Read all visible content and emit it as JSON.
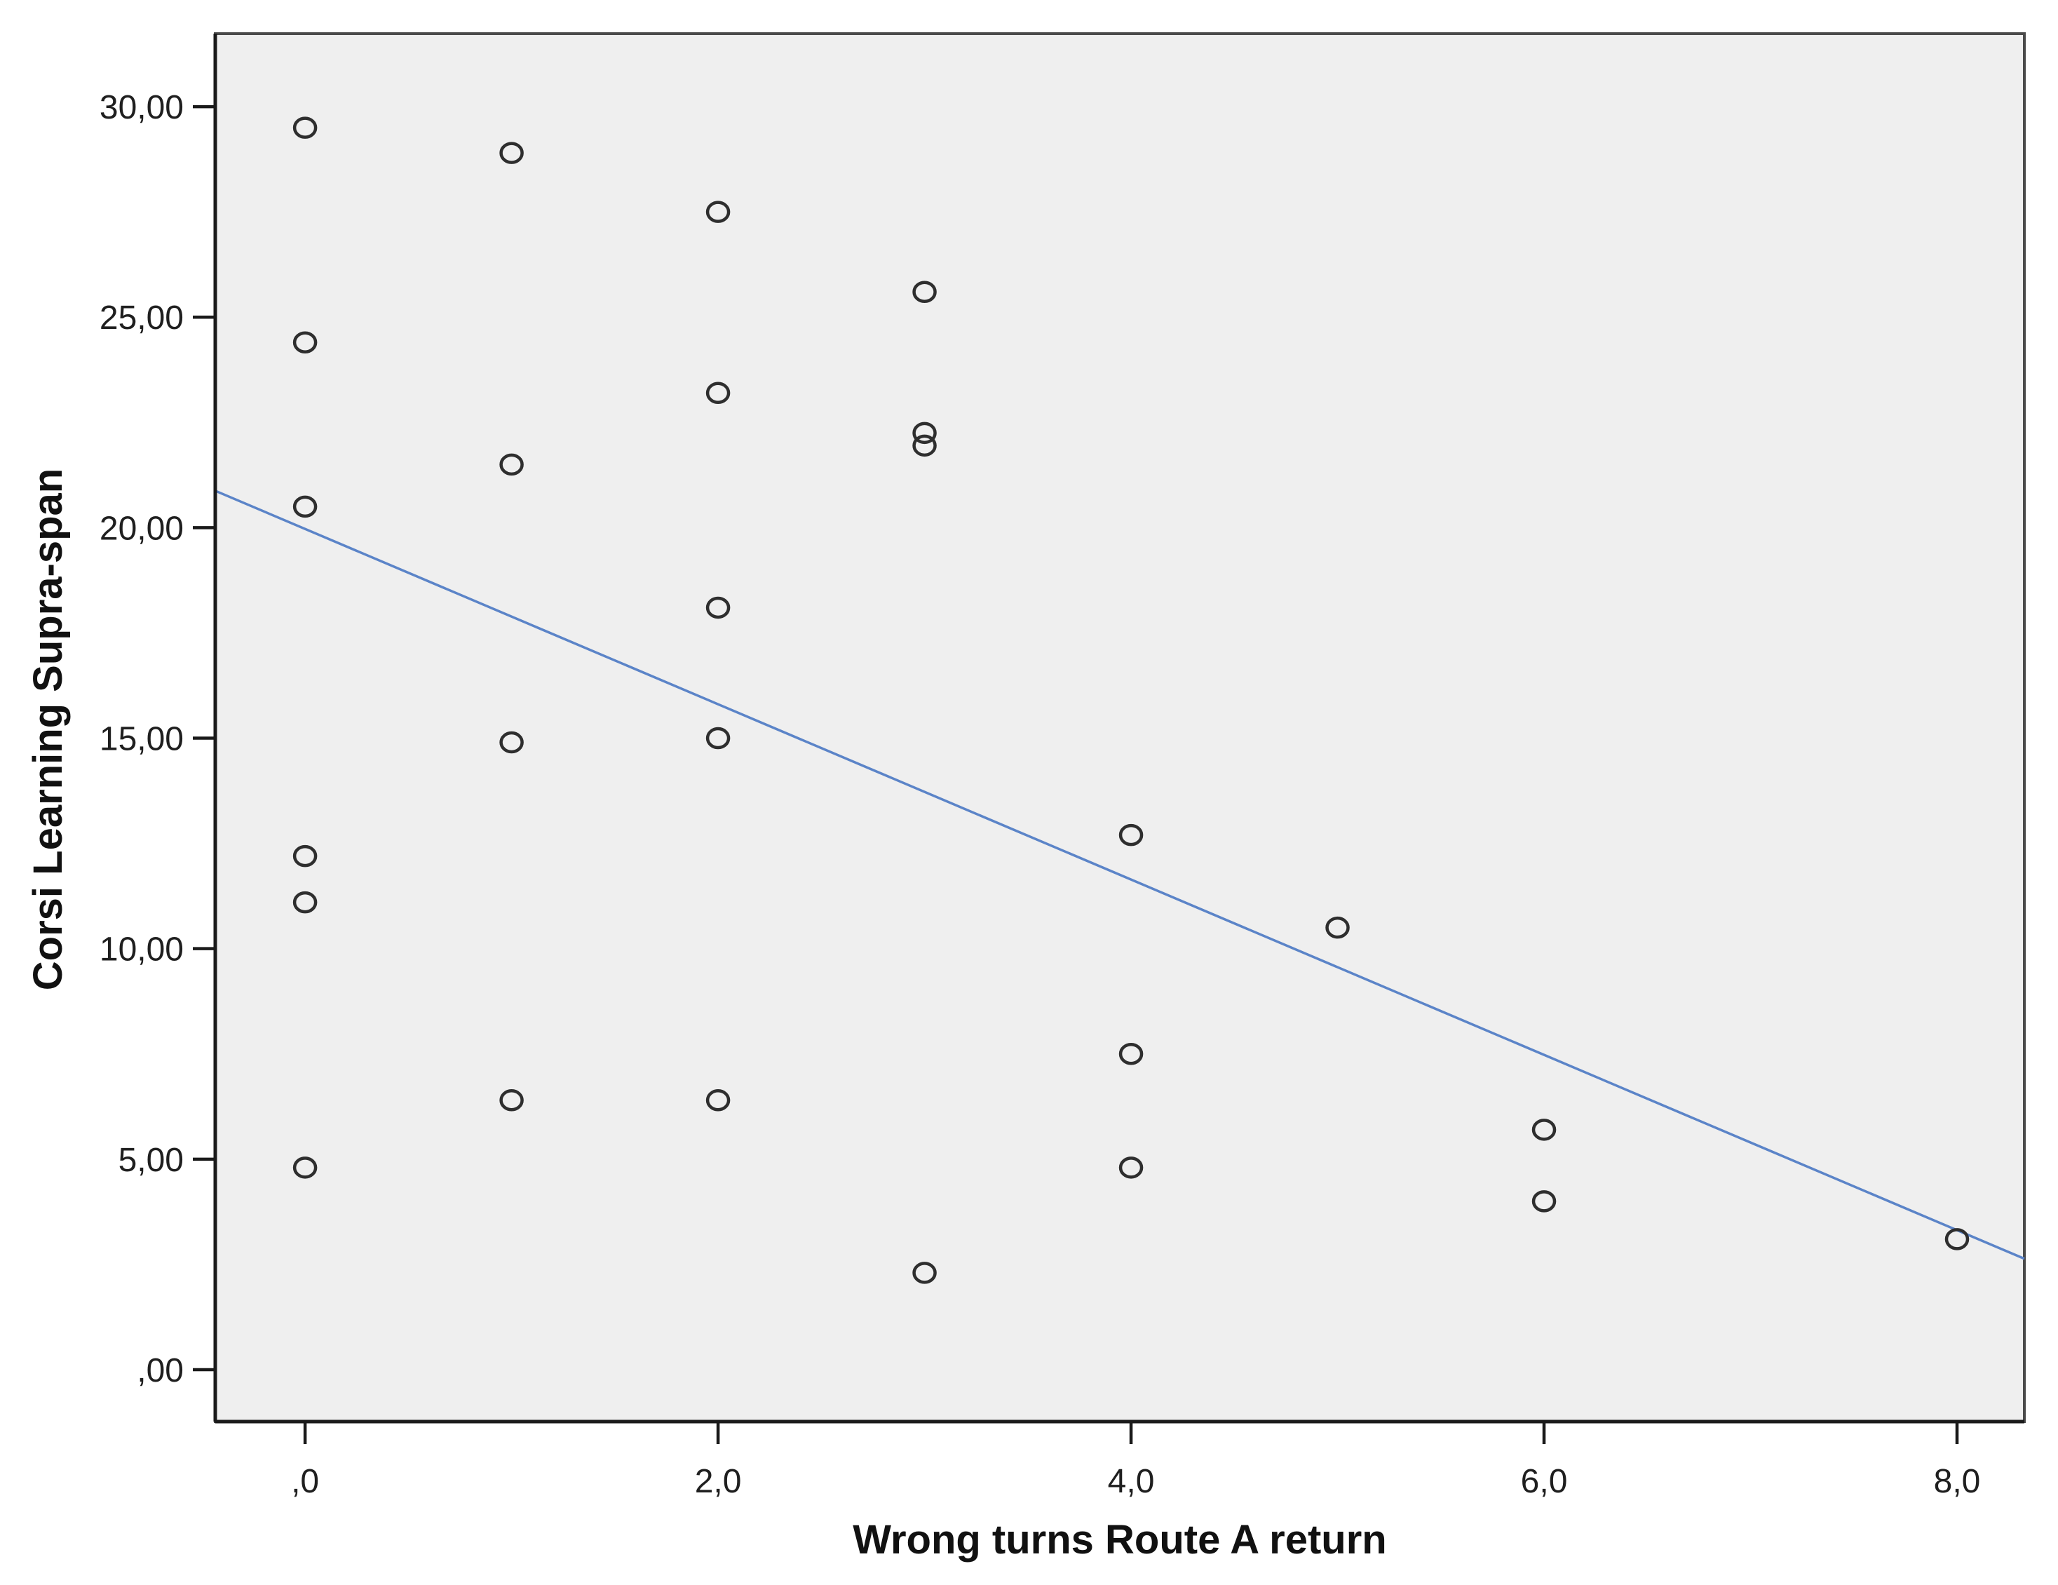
{
  "figure": {
    "kind": "scatterplot-with-fit-line",
    "background": "#ffffff"
  },
  "chart_data": {
    "type": "scatter",
    "title": "",
    "xlabel": "Wrong turns Route A return",
    "ylabel": "Corsi Learning Supra-span",
    "xlim": [
      -0.435,
      8.326
    ],
    "ylim": [
      -1.233,
      31.734
    ],
    "grid": false,
    "legend": null,
    "decimal_separator": ",",
    "x_ticks": {
      "values": [
        0,
        2,
        4,
        6,
        8
      ],
      "labels": [
        ",0",
        "2,0",
        "4,0",
        "6,0",
        "8,0"
      ]
    },
    "y_ticks": {
      "values": [
        0,
        5,
        10,
        15,
        20,
        25,
        30
      ],
      "labels": [
        ",00",
        "5,00",
        "10,00",
        "15,00",
        "20,00",
        "25,00",
        "30,00"
      ]
    },
    "points": [
      {
        "x": 0,
        "y": 29.5
      },
      {
        "x": 0,
        "y": 24.4
      },
      {
        "x": 0,
        "y": 20.5
      },
      {
        "x": 0,
        "y": 12.2
      },
      {
        "x": 0,
        "y": 11.1
      },
      {
        "x": 0,
        "y": 4.8
      },
      {
        "x": 1,
        "y": 28.9
      },
      {
        "x": 1,
        "y": 21.5
      },
      {
        "x": 1,
        "y": 14.9
      },
      {
        "x": 1,
        "y": 6.4
      },
      {
        "x": 2,
        "y": 27.5
      },
      {
        "x": 2,
        "y": 23.2
      },
      {
        "x": 2,
        "y": 18.1
      },
      {
        "x": 2,
        "y": 15.0
      },
      {
        "x": 2,
        "y": 6.4
      },
      {
        "x": 3,
        "y": 25.6
      },
      {
        "x": 3,
        "y": 22.25
      },
      {
        "x": 3,
        "y": 21.95
      },
      {
        "x": 3,
        "y": 2.3
      },
      {
        "x": 4,
        "y": 12.7
      },
      {
        "x": 4,
        "y": 7.5
      },
      {
        "x": 4,
        "y": 4.8
      },
      {
        "x": 5,
        "y": 10.5
      },
      {
        "x": 6,
        "y": 5.7
      },
      {
        "x": 6,
        "y": 4.0
      },
      {
        "x": 8,
        "y": 3.1
      }
    ],
    "fit_line": {
      "intercept": 19.97,
      "slope": -2.082,
      "x_start": -0.435,
      "x_end": 8.326
    },
    "marker": {
      "shape": "open-circle",
      "stroke": "#2e2e2e"
    },
    "colors": {
      "plot_background": "#efefef",
      "frame": "#4a4a4a",
      "axis": "#1a1a1a",
      "fit_line": "#5b84c8",
      "text": "#1f1f1f"
    }
  }
}
